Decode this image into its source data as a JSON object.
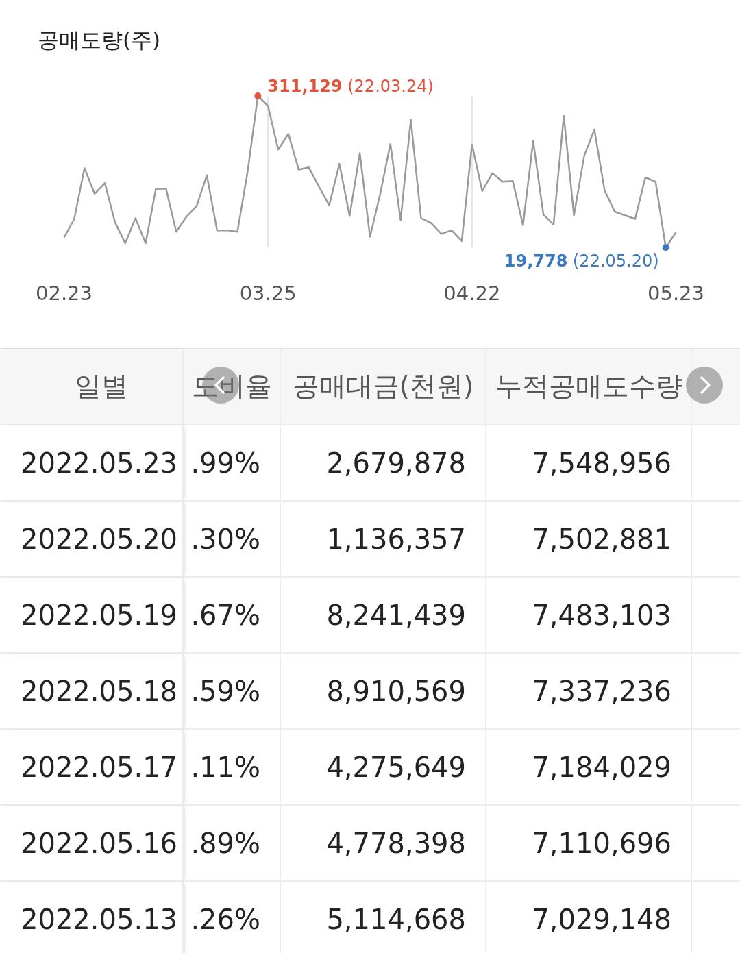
{
  "chart_data": [
    {
      "type": "line",
      "title": "공매도량(주)",
      "categories": [
        "02.23",
        null,
        null,
        null,
        null,
        null,
        null,
        null,
        null,
        null,
        null,
        null,
        null,
        null,
        null,
        null,
        null,
        null,
        null,
        null,
        "03.25",
        null,
        null,
        null,
        null,
        null,
        null,
        null,
        null,
        null,
        null,
        null,
        null,
        null,
        null,
        null,
        null,
        null,
        null,
        null,
        "04.22",
        null,
        null,
        null,
        null,
        null,
        null,
        null,
        null,
        null,
        null,
        null,
        null,
        null,
        null,
        null,
        null,
        null,
        null,
        null,
        "05.23"
      ],
      "series": [
        {
          "color": "#9a9a9a",
          "values": [
            39000,
            74700,
            172300,
            122800,
            143500,
            67900,
            28000,
            76100,
            28000,
            132500,
            132500,
            50000,
            78900,
            99500,
            158600,
            52800,
            52800,
            50000,
            165500,
            311129,
            291900,
            208100,
            238300,
            169600,
            173700,
            136600,
            100900,
            180600,
            80200,
            201200,
            40400,
            122800,
            219000,
            72000,
            265800,
            76100,
            66500,
            45900,
            52800,
            32100,
            217700,
            128300,
            162700,
            146200,
            147600,
            62400,
            224500,
            83000,
            63800,
            272600,
            81600,
            195700,
            246500,
            129700,
            88500,
            81600,
            74700,
            154500,
            146200,
            19778,
            48600
          ],
          "colors": [
            null,
            null,
            null,
            null,
            null,
            null,
            null,
            null,
            null,
            null,
            null,
            null,
            null,
            null,
            null,
            null,
            null,
            null,
            null,
            "#e0533a",
            null,
            null,
            null,
            null,
            null,
            null,
            null,
            null,
            null,
            null,
            null,
            null,
            null,
            null,
            null,
            null,
            null,
            null,
            null,
            null,
            null,
            null,
            null,
            null,
            null,
            null,
            null,
            null,
            null,
            null,
            null,
            null,
            null,
            null,
            null,
            null,
            null,
            null,
            null,
            "#3a78c0",
            null
          ],
          "value_labels": [
            null,
            null,
            null,
            null,
            null,
            null,
            null,
            null,
            null,
            null,
            null,
            null,
            null,
            null,
            null,
            null,
            null,
            null,
            null,
            "311,129 (22.03.24)",
            null,
            null,
            null,
            null,
            null,
            null,
            null,
            null,
            null,
            null,
            null,
            null,
            null,
            null,
            null,
            null,
            null,
            null,
            null,
            null,
            null,
            null,
            null,
            null,
            null,
            null,
            null,
            null,
            null,
            null,
            null,
            null,
            null,
            null,
            null,
            null,
            null,
            null,
            null,
            "19,778 (22.05.20)",
            null
          ]
        }
      ],
      "grid": "x",
      "line_style": "solid",
      "tick_labels": "x"
    },
    {
      "type": "other",
      "annotations": [
        "일별",
        "도비율",
        "공매대금(천원)",
        "누적공매도수량",
        "2022.05.23",
        ".99%",
        "2,679,878",
        "7,548,956",
        "2022.05.20",
        ".30%",
        "1,136,357",
        "7,502,881",
        "2022.05.19",
        ".67%",
        "8,241,439",
        "7,483,103",
        "2022.05.18",
        ".59%",
        "8,910,569",
        "7,337,236",
        "2022.05.17",
        ".11%",
        "4,275,649",
        "7,184,029",
        "2022.05.16",
        ".89%",
        "4,778,398",
        "7,110,696",
        "2022.05.13",
        ".26%",
        "5,114,668",
        "7,029,148"
      ]
    }
  ]
}
